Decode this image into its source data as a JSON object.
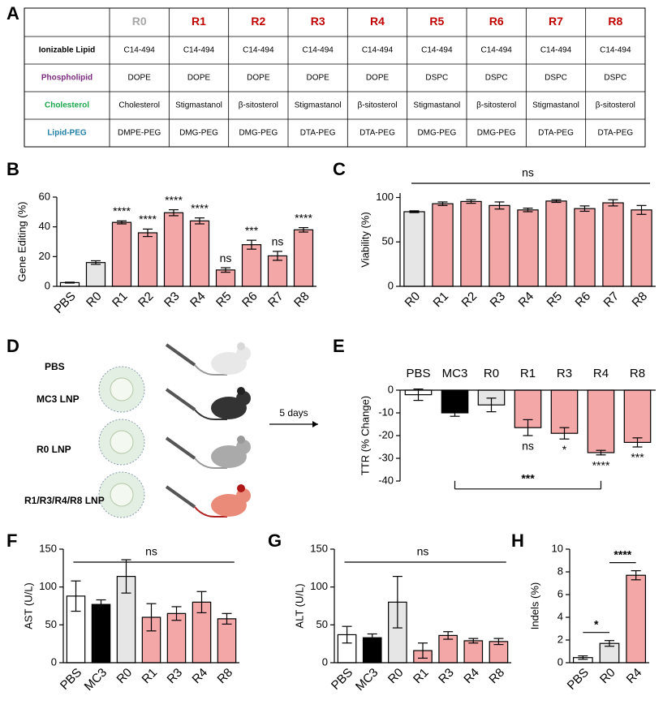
{
  "table": {
    "panel": "A",
    "columns": [
      "R0",
      "R1",
      "R2",
      "R3",
      "R4",
      "R5",
      "R6",
      "R7",
      "R8"
    ],
    "column_colors": [
      "#a6a6a6",
      "#c00000",
      "#c00000",
      "#c00000",
      "#c00000",
      "#c00000",
      "#c00000",
      "#c00000",
      "#c00000"
    ],
    "rows": [
      {
        "label": "Ionizable Lipid",
        "color": "#000000",
        "cells": [
          "C14-494",
          "C14-494",
          "C14-494",
          "C14-494",
          "C14-494",
          "C14-494",
          "C14-494",
          "C14-494",
          "C14-494"
        ]
      },
      {
        "label": "Phospholipid",
        "color": "#7b2c7f",
        "cells": [
          "DOPE",
          "DOPE",
          "DOPE",
          "DOPE",
          "DOPE",
          "DSPC",
          "DSPC",
          "DSPC",
          "DSPC"
        ]
      },
      {
        "label": "Cholesterol",
        "color": "#1ea84e",
        "cells": [
          "Cholesterol",
          "Stigmastanol",
          "β-sitosterol",
          "Stigmastanol",
          "β-sitosterol",
          "Stigmastanol",
          "β-sitosterol",
          "Stigmastanol",
          "β-sitosterol"
        ]
      },
      {
        "label": "Lipid-PEG",
        "color": "#1f7fa6",
        "cells": [
          "DMPE-PEG",
          "DMG-PEG",
          "DMG-PEG",
          "DTA-PEG",
          "DTA-PEG",
          "DMG-PEG",
          "DMG-PEG",
          "DTA-PEG",
          "DTA-PEG"
        ]
      }
    ]
  },
  "diagram": {
    "panel": "D",
    "groups": [
      "PBS",
      "MC3 LNP",
      "R0 LNP",
      "R1/R3/R4/R8 LNP"
    ],
    "arrow_label": "5 days"
  },
  "chart_data": [
    {
      "type": "bar",
      "panel": "B",
      "y_label": "Gene Editing (%)",
      "categories": [
        "PBS",
        "R0",
        "R1",
        "R2",
        "R3",
        "R4",
        "R5",
        "R6",
        "R7",
        "R8"
      ],
      "values": [
        2.5,
        16,
        43,
        36,
        49.5,
        44,
        11,
        28,
        20.5,
        38
      ],
      "errors": [
        0.3,
        1.2,
        1,
        2.5,
        2,
        2,
        1.5,
        3,
        3,
        1.5
      ],
      "annotations": [
        null,
        null,
        "****",
        "****",
        "****",
        "****",
        "ns",
        "***",
        "ns",
        "****"
      ],
      "colors": [
        "#ffffff",
        "#e6e6e6",
        "#f4a7a7",
        "#f4a7a7",
        "#f4a7a7",
        "#f4a7a7",
        "#f4a7a7",
        "#f4a7a7",
        "#f4a7a7",
        "#f4a7a7"
      ],
      "ylim": [
        0,
        60
      ],
      "yticks": [
        0,
        20,
        40,
        60
      ]
    },
    {
      "type": "bar",
      "panel": "C",
      "y_label": "Viability (%)",
      "categories": [
        "R0",
        "R1",
        "R2",
        "R3",
        "R4",
        "R5",
        "R6",
        "R7",
        "R8"
      ],
      "values": [
        84,
        93,
        95.5,
        91,
        86,
        96,
        87.5,
        94,
        86
      ],
      "errors": [
        1,
        2,
        2,
        4,
        2,
        1.5,
        3,
        3.5,
        5
      ],
      "colors": [
        "#e6e6e6",
        "#f4a7a7",
        "#f4a7a7",
        "#f4a7a7",
        "#f4a7a7",
        "#f4a7a7",
        "#f4a7a7",
        "#f4a7a7",
        "#f4a7a7"
      ],
      "annotation": "ns",
      "ylim": [
        0,
        105
      ],
      "yticks": [
        0,
        50,
        100
      ]
    },
    {
      "type": "bar",
      "panel": "E",
      "y_label": "TTR (% Change)",
      "x_axis_position": "top",
      "categories": [
        "PBS",
        "MC3",
        "R0",
        "R1",
        "R3",
        "R4",
        "R8"
      ],
      "values": [
        -2,
        -10,
        -6.5,
        -16.5,
        -19,
        -27.5,
        -23
      ],
      "errors": [
        2.5,
        1.5,
        3,
        3.5,
        2.5,
        1,
        2
      ],
      "annotations": [
        null,
        null,
        null,
        "ns",
        "*",
        "****",
        "***"
      ],
      "colors": [
        "#ffffff",
        "#000000",
        "#e6e6e6",
        "#f4a7a7",
        "#f4a7a7",
        "#f4a7a7",
        "#f4a7a7"
      ],
      "comparisons": [
        {
          "between": [
            1,
            5
          ],
          "label": "***"
        }
      ],
      "ylim": [
        -40,
        0
      ],
      "yticks": [
        -40,
        -30,
        -20,
        -10,
        0
      ]
    },
    {
      "type": "bar",
      "panel": "F",
      "y_label": "AST (U/L)",
      "categories": [
        "PBS",
        "MC3",
        "R0",
        "R1",
        "R3",
        "R4",
        "R8"
      ],
      "values": [
        88,
        77,
        114,
        60,
        65,
        80,
        58
      ],
      "errors": [
        20,
        6,
        22,
        18,
        9,
        14,
        7
      ],
      "colors": [
        "#ffffff",
        "#000000",
        "#e6e6e6",
        "#f4a7a7",
        "#f4a7a7",
        "#f4a7a7",
        "#f4a7a7"
      ],
      "annotation": "ns",
      "ylim": [
        0,
        150
      ],
      "yticks": [
        0,
        50,
        100,
        150
      ]
    },
    {
      "type": "bar",
      "panel": "G",
      "y_label": "ALT (U/L)",
      "categories": [
        "PBS",
        "MC3",
        "R0",
        "R1",
        "R3",
        "R4",
        "R8"
      ],
      "values": [
        37,
        33,
        80,
        16,
        36,
        29,
        28
      ],
      "errors": [
        11,
        5,
        34,
        10,
        5,
        3,
        4
      ],
      "colors": [
        "#ffffff",
        "#000000",
        "#e6e6e6",
        "#f4a7a7",
        "#f4a7a7",
        "#f4a7a7",
        "#f4a7a7"
      ],
      "annotation": "ns",
      "ylim": [
        0,
        150
      ],
      "yticks": [
        0,
        50,
        100,
        150
      ]
    },
    {
      "type": "bar",
      "panel": "H",
      "y_label": "Indels (%)",
      "categories": [
        "PBS",
        "R0",
        "R4"
      ],
      "values": [
        0.45,
        1.7,
        7.7
      ],
      "errors": [
        0.15,
        0.25,
        0.4
      ],
      "colors": [
        "#ffffff",
        "#e6e6e6",
        "#f4a7a7"
      ],
      "comparisons": [
        {
          "between": [
            0,
            1
          ],
          "label": "*"
        },
        {
          "between": [
            1,
            2
          ],
          "label": "****"
        }
      ],
      "ylim": [
        0,
        10
      ],
      "yticks": [
        0,
        2,
        4,
        6,
        8,
        10
      ]
    }
  ]
}
